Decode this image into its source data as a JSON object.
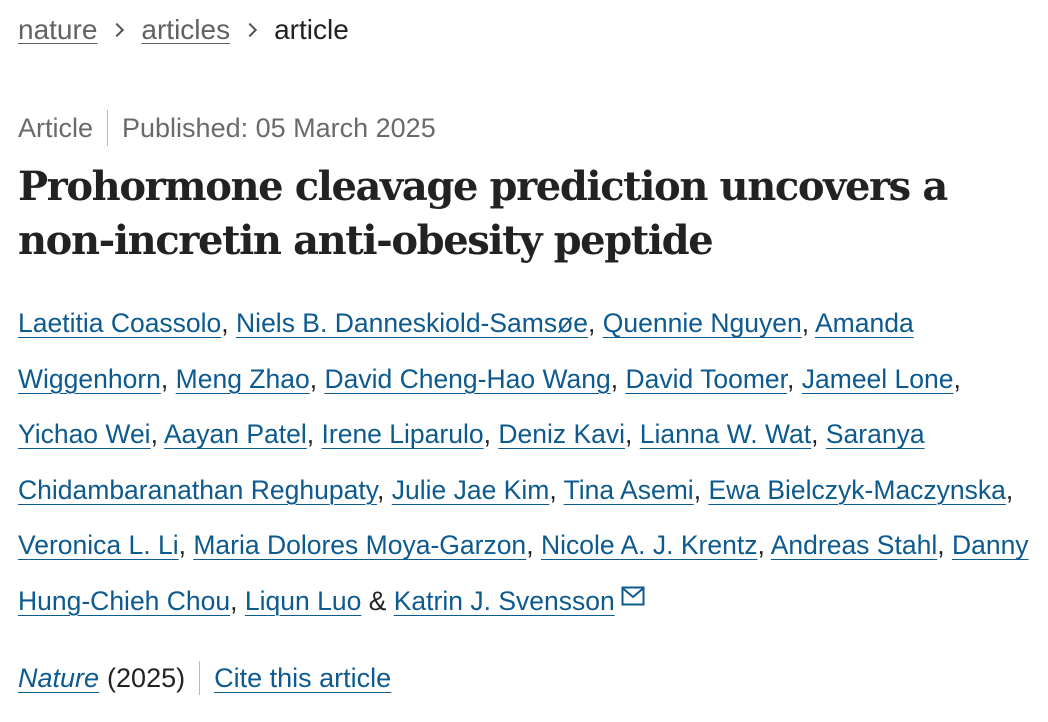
{
  "breadcrumb": {
    "items": [
      "nature",
      "articles"
    ],
    "current": "article"
  },
  "meta": {
    "type": "Article",
    "published": "Published: 05 March 2025"
  },
  "title": "Prohormone cleavage prediction uncovers a non-incretin anti-obesity peptide",
  "authors": [
    "Laetitia Coassolo",
    "Niels B. Danneskiold-Samsøe",
    "Quennie Nguyen",
    "Amanda Wiggenhorn",
    "Meng Zhao",
    "David Cheng-Hao Wang",
    "David Toomer",
    "Jameel Lone",
    "Yichao Wei",
    "Aayan Patel",
    "Irene Liparulo",
    "Deniz Kavi",
    "Lianna W. Wat",
    "Saranya Chidambaranathan Reghupaty",
    "Julie Jae Kim",
    "Tina Asemi",
    "Ewa Bielczyk-Maczynska",
    "Veronica L. Li",
    "Maria Dolores Moya-Garzon",
    "Nicole A. J. Krentz",
    "Andreas Stahl",
    "Danny Hung-Chieh Chou",
    "Liqun Luo",
    "Katrin J. Svensson"
  ],
  "separators": {
    "comma": ",",
    "ampersand": "&"
  },
  "citation": {
    "journal": "Nature",
    "year": "(2025)",
    "cite_label": "Cite this article"
  },
  "icons": {
    "email": "envelope-icon",
    "breadcrumb_separator": "chevron-right-icon"
  },
  "colors": {
    "link": "#0c5a8f",
    "muted": "#6a6a6a",
    "text": "#222222"
  }
}
